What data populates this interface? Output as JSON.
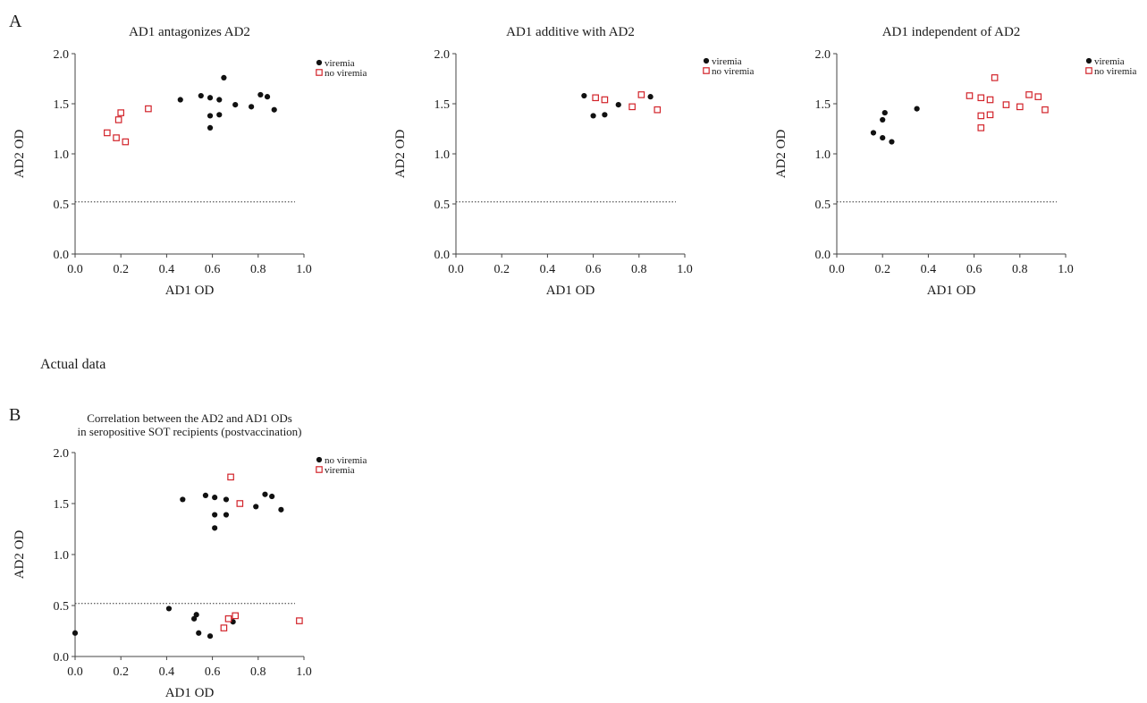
{
  "panel_labels": {
    "a": "A",
    "b": "B"
  },
  "section_label": "Actual data",
  "colors": {
    "viremia_dot": "#111111",
    "no_viremia_square": "#d2232a"
  },
  "chart_data": [
    {
      "type": "scatter",
      "title_lines": [
        "AD1 antagonizes AD2"
      ],
      "xlabel": "AD1 OD",
      "ylabel": "AD2 OD",
      "xlim": [
        0,
        1.0
      ],
      "ylim": [
        0,
        2.0
      ],
      "xticks": [
        "0.0",
        "0.2",
        "0.4",
        "0.6",
        "0.8",
        "1.0"
      ],
      "yticks": [
        "0.0",
        "0.5",
        "1.0",
        "1.5",
        "2.0"
      ],
      "reference_line_y": 0.52,
      "grid": false,
      "legend_placement": "top-right",
      "legend": [
        {
          "label": "viremia",
          "marker": "dot"
        },
        {
          "label": "no viremia",
          "marker": "square"
        }
      ],
      "series": [
        {
          "name": "viremia",
          "marker": "dot",
          "points": [
            [
              0.46,
              1.54
            ],
            [
              0.55,
              1.58
            ],
            [
              0.59,
              1.56
            ],
            [
              0.59,
              1.38
            ],
            [
              0.59,
              1.26
            ],
            [
              0.63,
              1.54
            ],
            [
              0.63,
              1.39
            ],
            [
              0.65,
              1.76
            ],
            [
              0.7,
              1.49
            ],
            [
              0.77,
              1.47
            ],
            [
              0.81,
              1.59
            ],
            [
              0.84,
              1.57
            ],
            [
              0.87,
              1.44
            ]
          ]
        },
        {
          "name": "no viremia",
          "marker": "square",
          "points": [
            [
              0.14,
              1.21
            ],
            [
              0.18,
              1.16
            ],
            [
              0.19,
              1.34
            ],
            [
              0.2,
              1.41
            ],
            [
              0.22,
              1.12
            ],
            [
              0.32,
              1.45
            ]
          ]
        }
      ]
    },
    {
      "type": "scatter",
      "title_lines": [
        "AD1 additive with AD2"
      ],
      "xlabel": "AD1 OD",
      "ylabel": "AD2 OD",
      "xlim": [
        0,
        1.0
      ],
      "ylim": [
        0,
        2.0
      ],
      "xticks": [
        "0.0",
        "0.2",
        "0.4",
        "0.6",
        "0.8",
        "1.0"
      ],
      "yticks": [
        "0.0",
        "0.5",
        "1.0",
        "1.5",
        "2.0"
      ],
      "reference_line_y": 0.52,
      "grid": false,
      "legend_placement": "top-right",
      "legend": [
        {
          "label": "viremia",
          "marker": "dot"
        },
        {
          "label": "no viremia",
          "marker": "square"
        }
      ],
      "series": [
        {
          "name": "viremia",
          "marker": "dot",
          "points": [
            [
              0.56,
              1.58
            ],
            [
              0.6,
              1.38
            ],
            [
              0.65,
              1.39
            ],
            [
              0.71,
              1.49
            ],
            [
              0.85,
              1.57
            ]
          ]
        },
        {
          "name": "no viremia",
          "marker": "square",
          "points": [
            [
              0.61,
              1.56
            ],
            [
              0.65,
              1.54
            ],
            [
              0.77,
              1.47
            ],
            [
              0.81,
              1.59
            ],
            [
              0.88,
              1.44
            ]
          ]
        }
      ]
    },
    {
      "type": "scatter",
      "title_lines": [
        "AD1 independent of AD2"
      ],
      "xlabel": "AD1 OD",
      "ylabel": "AD2 OD",
      "xlim": [
        0,
        1.0
      ],
      "ylim": [
        0,
        2.0
      ],
      "xticks": [
        "0.0",
        "0.2",
        "0.4",
        "0.6",
        "0.8",
        "1.0"
      ],
      "yticks": [
        "0.0",
        "0.5",
        "1.0",
        "1.5",
        "2.0"
      ],
      "reference_line_y": 0.52,
      "grid": false,
      "legend_placement": "top-right",
      "legend": [
        {
          "label": "viremia",
          "marker": "dot"
        },
        {
          "label": "no viremia",
          "marker": "square"
        }
      ],
      "series": [
        {
          "name": "viremia",
          "marker": "dot",
          "points": [
            [
              0.16,
              1.21
            ],
            [
              0.2,
              1.16
            ],
            [
              0.2,
              1.34
            ],
            [
              0.21,
              1.41
            ],
            [
              0.24,
              1.12
            ],
            [
              0.35,
              1.45
            ]
          ]
        },
        {
          "name": "no viremia",
          "marker": "square",
          "points": [
            [
              0.58,
              1.58
            ],
            [
              0.63,
              1.56
            ],
            [
              0.63,
              1.38
            ],
            [
              0.63,
              1.26
            ],
            [
              0.67,
              1.54
            ],
            [
              0.67,
              1.39
            ],
            [
              0.69,
              1.76
            ],
            [
              0.74,
              1.49
            ],
            [
              0.8,
              1.47
            ],
            [
              0.84,
              1.59
            ],
            [
              0.88,
              1.57
            ],
            [
              0.91,
              1.44
            ]
          ]
        }
      ]
    },
    {
      "type": "scatter",
      "title_lines": [
        "Correlation between the AD2 and AD1 ODs",
        "in seropositive SOT recipients (postvaccination)"
      ],
      "xlabel": "AD1 OD",
      "ylabel": "AD2 OD",
      "xlim": [
        0,
        1.0
      ],
      "ylim": [
        0,
        2.0
      ],
      "xticks": [
        "0.0",
        "0.2",
        "0.4",
        "0.6",
        "0.8",
        "1.0"
      ],
      "yticks": [
        "0.0",
        "0.5",
        "1.0",
        "1.5",
        "2.0"
      ],
      "reference_line_y": 0.52,
      "grid": false,
      "legend_placement": "top-right",
      "legend": [
        {
          "label": "no viremia",
          "marker": "dot"
        },
        {
          "label": "viremia",
          "marker": "square"
        }
      ],
      "series": [
        {
          "name": "no viremia",
          "marker": "dot",
          "points": [
            [
              0.47,
              1.54
            ],
            [
              0.57,
              1.58
            ],
            [
              0.61,
              1.56
            ],
            [
              0.61,
              1.39
            ],
            [
              0.61,
              1.26
            ],
            [
              0.66,
              1.54
            ],
            [
              0.66,
              1.39
            ],
            [
              0.79,
              1.47
            ],
            [
              0.83,
              1.59
            ],
            [
              0.86,
              1.57
            ],
            [
              0.9,
              1.44
            ],
            [
              0.0,
              0.23
            ],
            [
              0.41,
              0.47
            ],
            [
              0.52,
              0.37
            ],
            [
              0.53,
              0.41
            ],
            [
              0.54,
              0.23
            ],
            [
              0.59,
              0.2
            ],
            [
              0.69,
              0.34
            ]
          ]
        },
        {
          "name": "viremia",
          "marker": "square",
          "points": [
            [
              0.68,
              1.76
            ],
            [
              0.72,
              1.5
            ],
            [
              0.65,
              0.28
            ],
            [
              0.67,
              0.37
            ],
            [
              0.7,
              0.4
            ],
            [
              0.98,
              0.35
            ]
          ]
        }
      ]
    }
  ]
}
